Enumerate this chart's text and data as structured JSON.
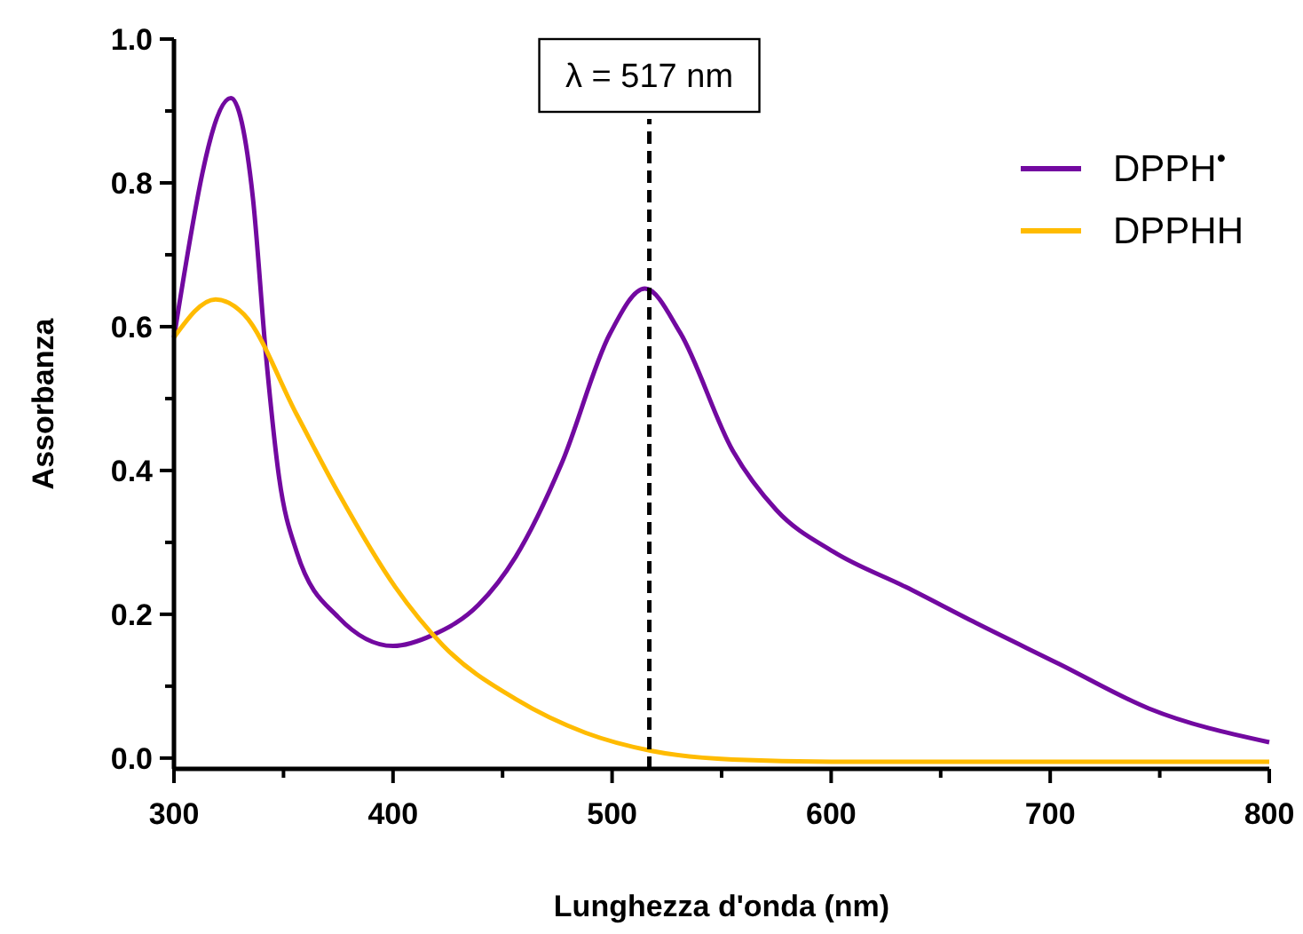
{
  "chart_data": {
    "type": "line",
    "xlabel": "Lunghezza d'onda (nm)",
    "ylabel": "Assorbanza",
    "xlim": [
      300,
      800
    ],
    "ylim": [
      -0.015,
      1.0
    ],
    "xticks": [
      300,
      {
        "value": 350,
        "label": null
      },
      400,
      {
        "value": 450,
        "label": null
      },
      500,
      {
        "value": 550,
        "label": null
      },
      600,
      {
        "value": 650,
        "label": null
      },
      700,
      {
        "value": 750,
        "label": null
      },
      800
    ],
    "yticks": [
      {
        "value": 0,
        "label": "0.0"
      },
      {
        "value": 0.1,
        "label": null
      },
      0.2,
      {
        "value": 0.3,
        "label": null
      },
      0.4,
      {
        "value": 0.5,
        "label": null
      },
      0.6,
      {
        "value": 0.7,
        "label": null
      },
      0.8,
      {
        "value": 0.9,
        "label": null
      },
      {
        "value": 1,
        "label": "1.0"
      }
    ],
    "grid": false,
    "legend": "top right",
    "marker": "none",
    "line_style": "solid",
    "ref_lines": [
      {
        "axis": "x",
        "value": 517,
        "label": "λ = 517 nm",
        "color": "#000000",
        "line_style": "dashed"
      }
    ],
    "series": [
      {
        "name": "DPPH$^{•}$",
        "color": "#7209a0",
        "x": [
          300,
          326,
          336,
          342,
          348,
          356,
          375,
          400,
          418,
          439,
          456,
          477,
          499,
          515,
          531,
          555,
          575,
          601,
          634,
          666,
          704,
          745,
          800
        ],
        "values": [
          0.585,
          0.918,
          0.78,
          0.56,
          0.39,
          0.287,
          0.196,
          0.156,
          0.171,
          0.213,
          0.28,
          0.41,
          0.59,
          0.653,
          0.592,
          0.428,
          0.345,
          0.287,
          0.238,
          0.188,
          0.131,
          0.069,
          0.022
        ]
      },
      {
        "name": "DPPHH",
        "color": "#ffbb00",
        "x": [
          300,
          319,
          332,
          356,
          375,
          401,
          423,
          456,
          488,
          518,
          555,
          600,
          800
        ],
        "values": [
          0.585,
          0.638,
          0.617,
          0.478,
          0.369,
          0.238,
          0.156,
          0.082,
          0.035,
          0.01,
          -0.002,
          -0.005,
          -0.005
        ]
      }
    ]
  }
}
